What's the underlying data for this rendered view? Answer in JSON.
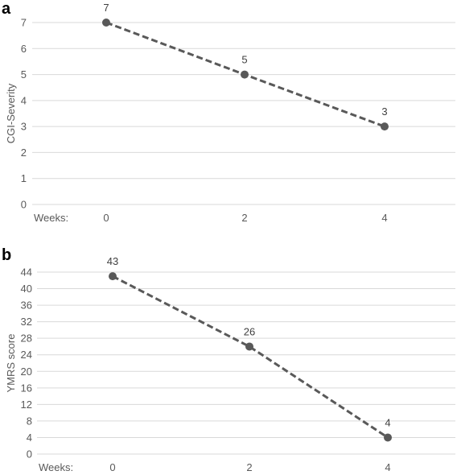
{
  "chart_data": [
    {
      "panel": "a",
      "type": "line",
      "xlabel": "Weeks:",
      "ylabel": "CGI-Severity",
      "x": [
        0,
        2,
        4
      ],
      "x_tick_labels": [
        "0",
        "2",
        "4"
      ],
      "ylim": [
        0,
        7
      ],
      "y_ticks": [
        0,
        1,
        2,
        3,
        4,
        5,
        6,
        7
      ],
      "grid": true,
      "series": [
        {
          "values": [
            7,
            5,
            3
          ],
          "data_labels": [
            "7",
            "5",
            "3"
          ],
          "color": "#595959",
          "style": "dashed"
        }
      ]
    },
    {
      "panel": "b",
      "type": "line",
      "xlabel": "Weeks:",
      "ylabel": "YMRS score",
      "x": [
        0,
        2,
        4
      ],
      "x_tick_labels": [
        "0",
        "2",
        "4"
      ],
      "ylim": [
        0,
        44
      ],
      "y_ticks": [
        0,
        4,
        8,
        12,
        16,
        20,
        24,
        28,
        32,
        36,
        40,
        44
      ],
      "grid": true,
      "series": [
        {
          "values": [
            43,
            26,
            4
          ],
          "data_labels": [
            "43",
            "26",
            "4"
          ],
          "color": "#595959",
          "style": "dashed"
        }
      ]
    }
  ]
}
